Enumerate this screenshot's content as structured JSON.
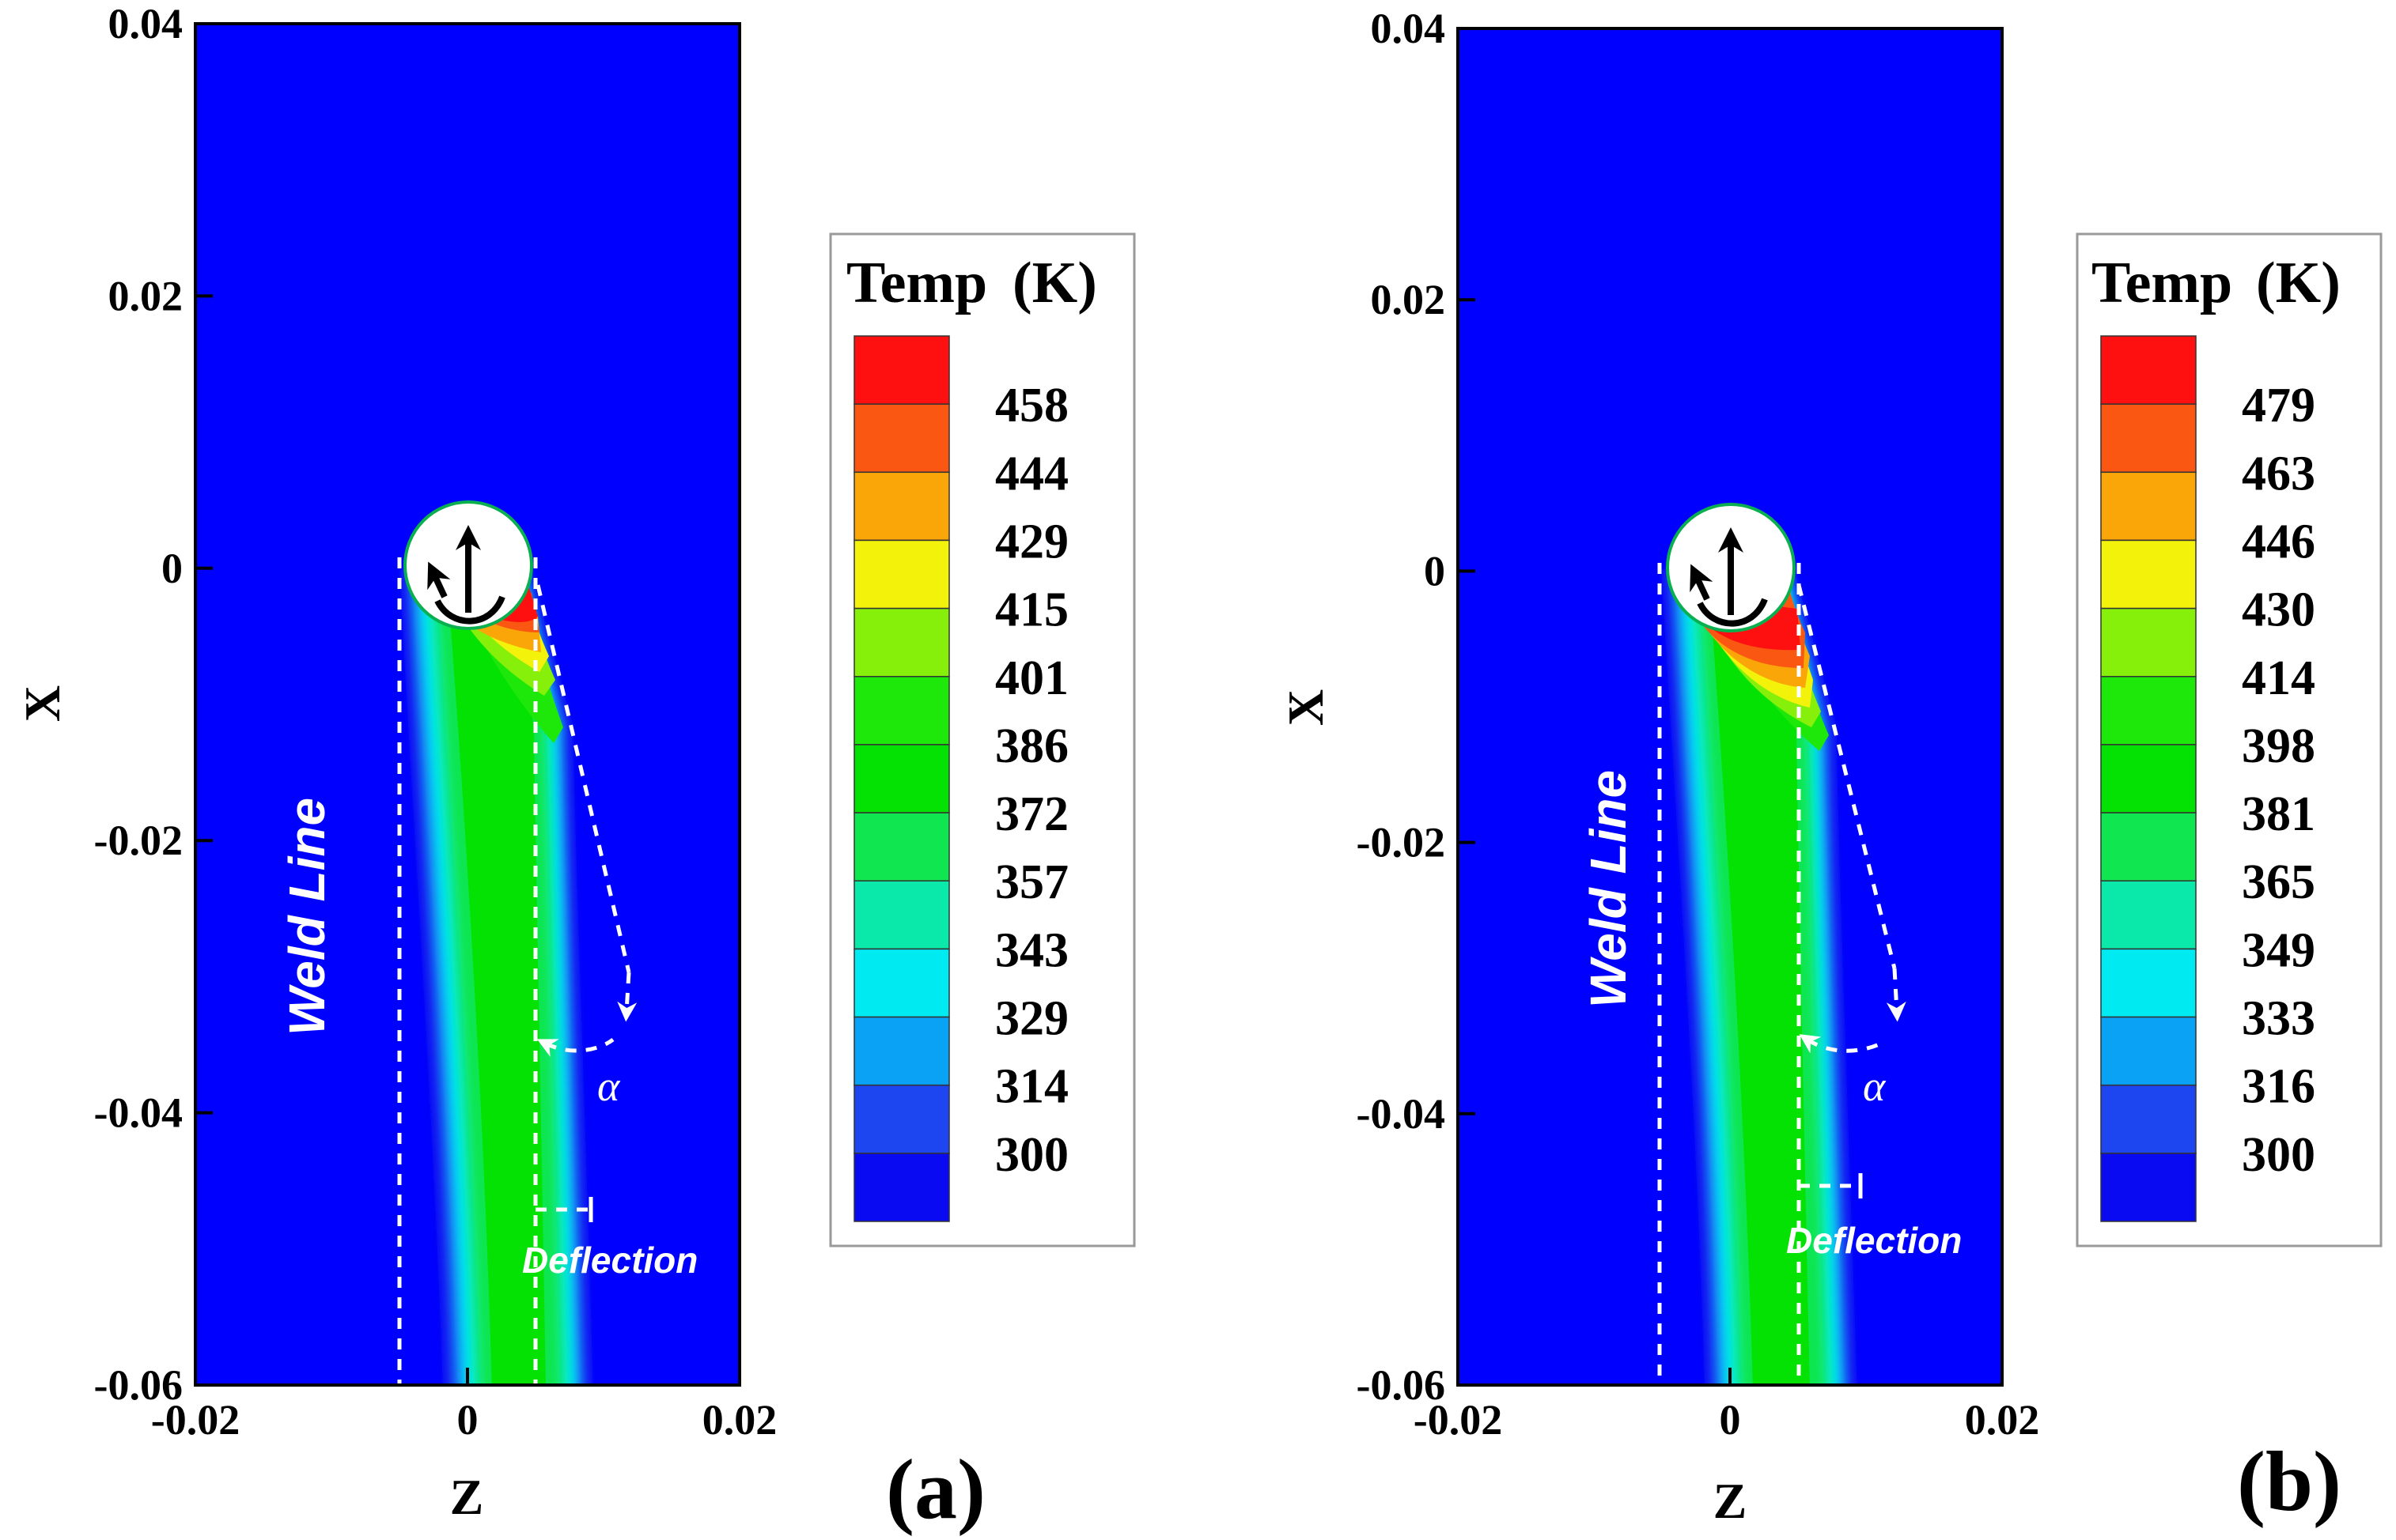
{
  "colors": {
    "background": "#0000ff",
    "bands": [
      "#0a0af2",
      "#1e46f0",
      "#0aa2f4",
      "#00eaf2",
      "#0ae8aa",
      "#10e650",
      "#04e204",
      "#1ee80a",
      "#86f00a",
      "#f2f20a",
      "#faa508",
      "#fa5812",
      "#ff1010"
    ],
    "annotation": "#ffffff"
  },
  "chart_data": [
    {
      "type": "contour",
      "panel_label": "(a)",
      "xlabel": "Z",
      "ylabel": "X",
      "xlim": [
        -0.02,
        0.02
      ],
      "ylim": [
        -0.06,
        0.04
      ],
      "xtick_labels": [
        "-0.02",
        "0",
        "0.02"
      ],
      "ytick_labels": [
        "0.04",
        "0.02",
        "0",
        "-0.02",
        "-0.04",
        "-0.06"
      ],
      "legend_title": "Temp",
      "legend_unit": "(K)",
      "legend_values": [
        "458",
        "444",
        "429",
        "415",
        "401",
        "386",
        "372",
        "357",
        "343",
        "329",
        "314",
        "300"
      ],
      "annotations": {
        "weld_line": "Weld Line",
        "deflection": "Deflection",
        "angle": "α"
      },
      "plume_tilt": 0.6
    },
    {
      "type": "contour",
      "panel_label": "(b)",
      "xlabel": "Z",
      "ylabel": "X",
      "xlim": [
        -0.02,
        0.02
      ],
      "ylim": [
        -0.06,
        0.04
      ],
      "xtick_labels": [
        "-0.02",
        "0",
        "0.02"
      ],
      "ytick_labels": [
        "0.04",
        "0.02",
        "0",
        "-0.02",
        "-0.04",
        "-0.06"
      ],
      "legend_title": "Temp",
      "legend_unit": "(K)",
      "legend_values": [
        "479",
        "463",
        "446",
        "430",
        "414",
        "398",
        "381",
        "365",
        "349",
        "333",
        "316",
        "300"
      ],
      "annotations": {
        "weld_line": "Weld Line",
        "deflection": "Deflection",
        "angle": "α"
      },
      "plume_tilt": 0.8
    }
  ]
}
